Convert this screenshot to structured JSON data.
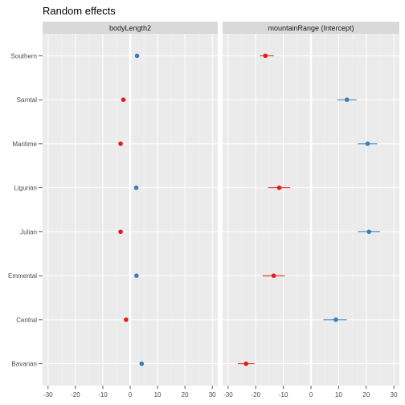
{
  "chart_data": {
    "type": "scatter",
    "title": "Random effects",
    "categories": [
      "Southern",
      "Sarntal",
      "Maritime",
      "Ligurian",
      "Julian",
      "Emmental",
      "Central",
      "Bavarian"
    ],
    "xlim": [
      -32,
      32
    ],
    "x_ticks": [
      -30,
      -20,
      -10,
      0,
      10,
      20,
      30
    ],
    "grid": true,
    "colors": {
      "positive": "#377eb8",
      "negative": "#e41a1c",
      "panel_bg": "#ebebeb",
      "strip_bg": "#d9d9d9",
      "zero_line": "#ffffff"
    },
    "panels": [
      {
        "strip": "bodyLength2",
        "points": [
          {
            "category": "Southern",
            "estimate": 2.5,
            "lower": 2.0,
            "upper": 3.0
          },
          {
            "category": "Sarntal",
            "estimate": -2.5,
            "lower": -3.0,
            "upper": -2.0
          },
          {
            "category": "Maritime",
            "estimate": -3.5,
            "lower": -4.0,
            "upper": -3.0
          },
          {
            "category": "Ligurian",
            "estimate": 2.2,
            "lower": 1.7,
            "upper": 2.7
          },
          {
            "category": "Julian",
            "estimate": -3.5,
            "lower": -4.0,
            "upper": -3.0
          },
          {
            "category": "Emmental",
            "estimate": 2.3,
            "lower": 1.8,
            "upper": 2.8
          },
          {
            "category": "Central",
            "estimate": -1.5,
            "lower": -2.0,
            "upper": -1.0
          },
          {
            "category": "Bavarian",
            "estimate": 4.2,
            "lower": 3.7,
            "upper": 4.7
          }
        ]
      },
      {
        "strip": "mountainRange (Intercept)",
        "points": [
          {
            "category": "Southern",
            "estimate": -16.5,
            "lower": -18.5,
            "upper": -13.5
          },
          {
            "category": "Sarntal",
            "estimate": 13.0,
            "lower": 9.5,
            "upper": 16.5
          },
          {
            "category": "Maritime",
            "estimate": 20.5,
            "lower": 17.0,
            "upper": 24.0
          },
          {
            "category": "Ligurian",
            "estimate": -11.5,
            "lower": -15.5,
            "upper": -7.5
          },
          {
            "category": "Julian",
            "estimate": 21.0,
            "lower": 17.0,
            "upper": 25.0
          },
          {
            "category": "Emmental",
            "estimate": -13.5,
            "lower": -17.5,
            "upper": -9.5
          },
          {
            "category": "Central",
            "estimate": 9.0,
            "lower": 4.5,
            "upper": 13.0
          },
          {
            "category": "Bavarian",
            "estimate": -23.5,
            "lower": -26.5,
            "upper": -20.5
          }
        ]
      }
    ]
  }
}
